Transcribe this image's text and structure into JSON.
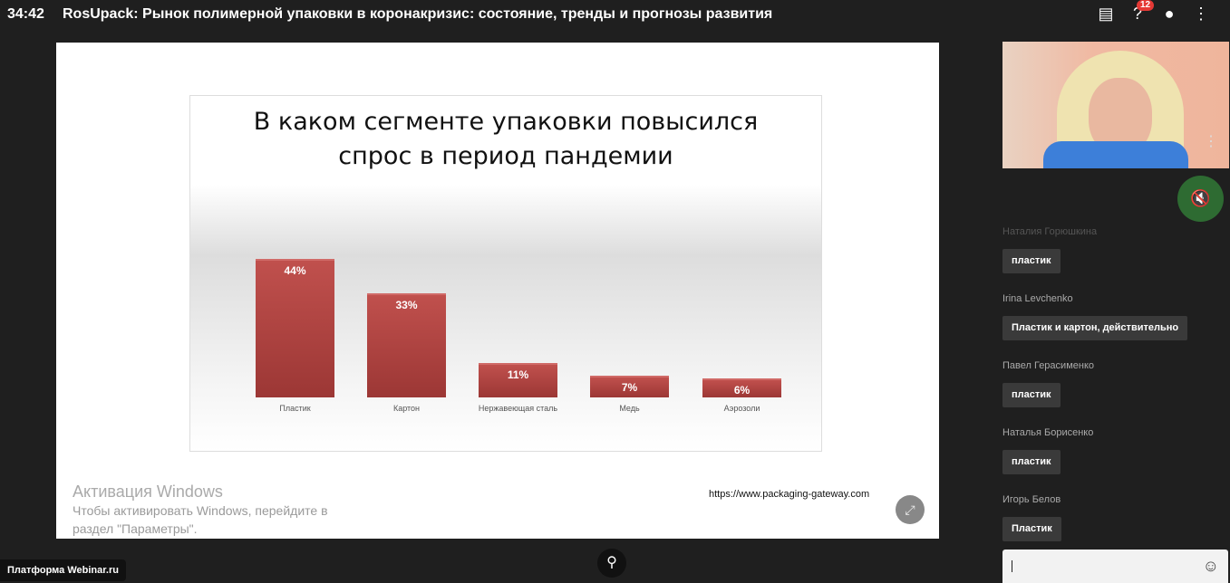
{
  "header": {
    "time": "34:42",
    "title": "RosUpack: Рынок полимерной упаковки в коронакризис: состояние, тренды и прогнозы развития",
    "questions_badge": "12"
  },
  "slide": {
    "source": "https://www.packaging-gateway.com"
  },
  "chart_data": {
    "type": "bar",
    "title": "В каком сегменте упаковки повысился спрос в период пандемии",
    "title_lines": [
      "В каком сегменте упаковки повысился",
      "спрос в период пандемии"
    ],
    "categories": [
      "Пластик",
      "Картон",
      "Нержавеющая сталь",
      "Медь",
      "Аэрозоли"
    ],
    "values": [
      44,
      33,
      11,
      7,
      6
    ],
    "labels": [
      "44%",
      "33%",
      "11%",
      "7%",
      "6%"
    ],
    "ylim": [
      0,
      50
    ],
    "color": "#c0504d"
  },
  "chat": {
    "messages": [
      {
        "author": "Наталия Горюшкина",
        "text": "пластик"
      },
      {
        "author": "Irina Levchenko",
        "text": "Пластик и картон, действительно"
      },
      {
        "author": "Павел Герасименко",
        "text": "пластик"
      },
      {
        "author": "Наталья Борисенко",
        "text": "пластик"
      },
      {
        "author": "Игорь Белов",
        "text": "Пластик"
      }
    ]
  },
  "windows": {
    "title": "Активация Windows",
    "line1": "Чтобы активировать Windows, перейдите в",
    "line2": "раздел \"Параметры\"."
  },
  "footer": {
    "platform": "Платформа Webinar.ru"
  }
}
